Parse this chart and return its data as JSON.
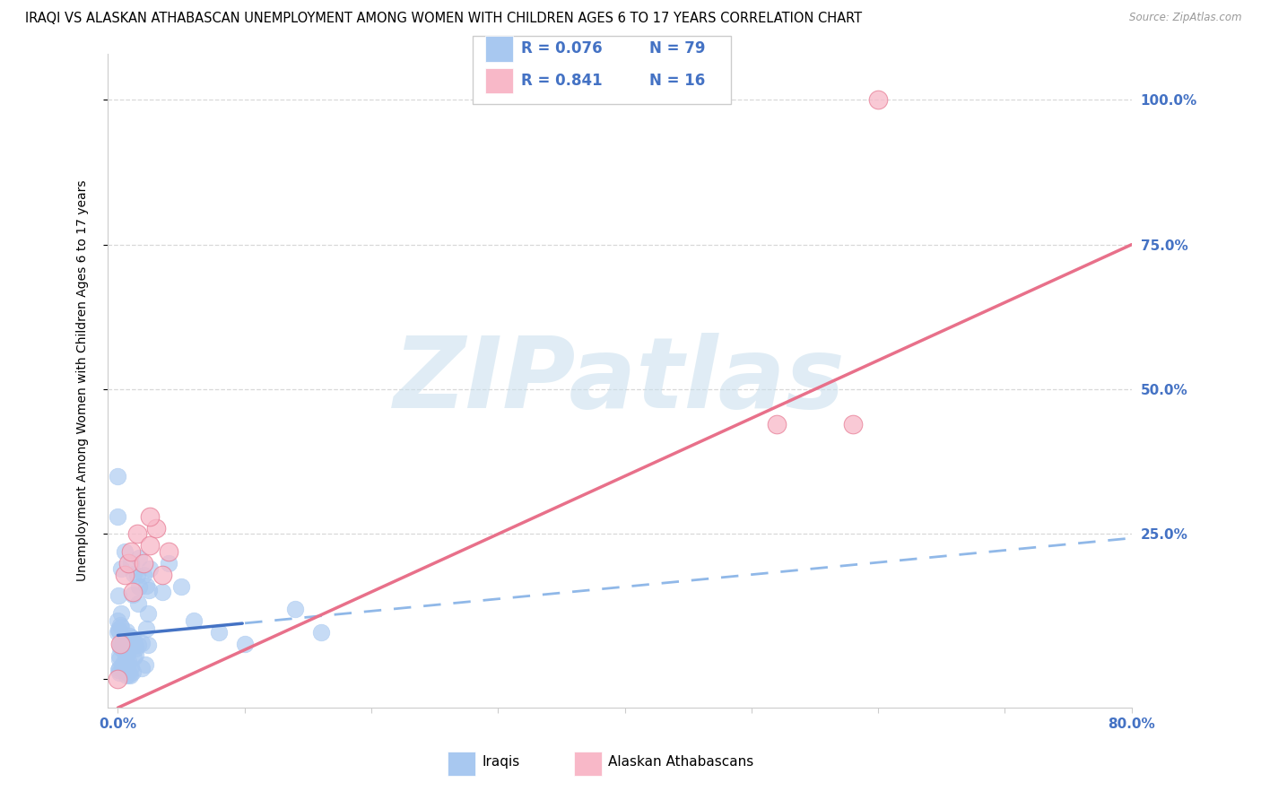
{
  "title": "IRAQI VS ALASKAN ATHABASCAN UNEMPLOYMENT AMONG WOMEN WITH CHILDREN AGES 6 TO 17 YEARS CORRELATION CHART",
  "source": "Source: ZipAtlas.com",
  "ylabel": "Unemployment Among Women with Children Ages 6 to 17 years",
  "iraqi_color": "#a8c8f0",
  "iraqi_edge_color": "#7aaad8",
  "athabascan_color": "#f8b8c8",
  "athabascan_edge_color": "#e88098",
  "trend_iraqi_solid_color": "#4472c4",
  "trend_iraqi_dashed_color": "#90b8e8",
  "trend_athabascan_color": "#e8708a",
  "background_color": "#ffffff",
  "watermark": "ZIPatlas",
  "watermark_color_rgb": [
    0.78,
    0.87,
    0.93
  ],
  "legend_R_iraqi": "R = 0.076",
  "legend_N_iraqi": "N = 79",
  "legend_R_athabascan": "R = 0.841",
  "legend_N_athabascan": "N = 16",
  "grid_color": "#d8d8d8",
  "tick_color": "#4472c4",
  "title_fontsize": 10.5,
  "tick_fontsize": 11,
  "label_fontsize": 10
}
